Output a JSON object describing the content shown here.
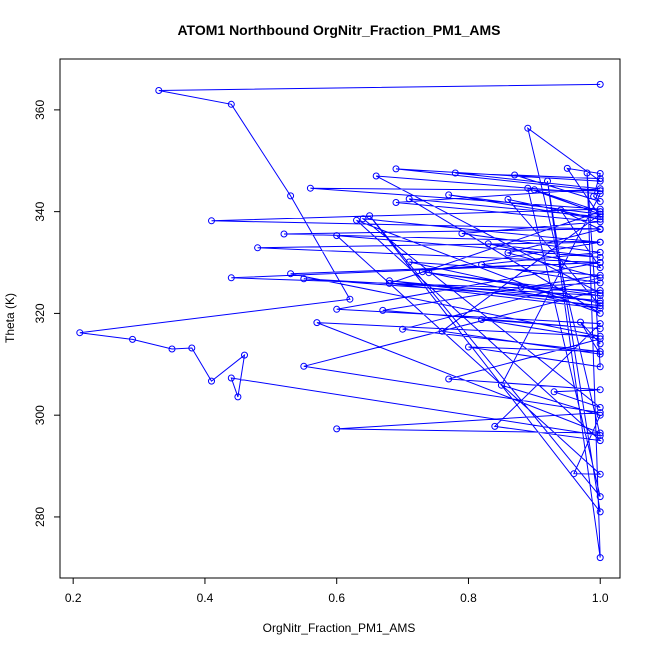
{
  "chart_data": {
    "type": "line",
    "title": "ATOM1 Northbound OrgNitr_Fraction_PM1_AMS",
    "xlabel": "OrgNitr_Fraction_PM1_AMS",
    "ylabel": "Theta (K)",
    "xlim": [
      0.18,
      1.03
    ],
    "ylim": [
      268,
      370
    ],
    "xticks": [
      0.2,
      0.4,
      0.6,
      0.8,
      1.0
    ],
    "xtick_labels": [
      "0.2",
      "0.4",
      "0.6",
      "0.8",
      "1.0"
    ],
    "yticks": [
      280,
      300,
      320,
      340,
      360
    ],
    "ytick_labels": [
      "280",
      "300",
      "320",
      "340",
      "360"
    ],
    "grid": false,
    "legend": "none",
    "colors": {
      "series": "#0000ff",
      "axes": "#000000",
      "background": "#ffffff"
    },
    "series": [
      {
        "markers": "open-circle",
        "x": [
          1.0,
          0.33,
          0.44,
          0.53,
          0.62,
          0.21,
          0.29,
          0.35,
          0.38,
          0.41,
          0.46,
          0.45,
          0.44,
          1.0,
          0.89,
          1.0,
          0.69,
          1.0,
          0.56,
          1.0,
          0.41,
          1.0,
          0.52,
          1.0,
          0.48,
          1.0,
          0.44,
          1.0,
          0.55,
          1.0,
          0.6,
          1.0,
          0.57,
          1.0,
          0.53,
          1.0,
          0.6,
          1.0,
          0.84,
          1.0,
          0.63,
          1.0,
          0.71,
          1.0,
          0.95,
          1.0,
          0.99,
          1.0,
          0.87,
          1.0,
          0.78,
          1.0,
          0.69,
          1.0,
          0.79,
          1.0,
          0.82,
          1.0,
          0.88,
          1.0,
          0.71,
          1.0,
          0.67,
          1.0,
          0.82,
          1.0,
          0.77,
          1.0,
          0.93,
          1.0,
          0.64,
          1.0,
          0.73,
          1.0,
          0.55,
          1.0,
          0.68,
          1.0,
          0.86,
          1.0,
          0.77,
          1.0,
          0.9,
          1.0,
          0.68,
          1.0,
          0.74,
          1.0,
          0.66,
          1.0,
          0.85,
          1.0,
          0.96,
          1.0,
          0.6,
          1.0,
          0.83,
          1.0,
          0.94,
          1.0,
          0.86,
          1.0,
          0.7,
          1.0,
          0.8,
          1.0,
          0.98,
          1.0,
          0.92,
          1.0,
          0.65,
          1.0,
          0.89,
          1.0,
          0.76,
          1.0,
          0.97,
          1.0
        ],
        "y": [
          365.0,
          363.8,
          361.1,
          343.1,
          322.8,
          316.2,
          314.9,
          313.0,
          313.2,
          306.7,
          311.8,
          303.6,
          307.3,
          296.0,
          356.4,
          346.0,
          348.4,
          344.1,
          344.6,
          340.5,
          338.2,
          336.6,
          335.6,
          334.0,
          332.9,
          330.0,
          327.0,
          324.5,
          309.6,
          300.5,
          297.3,
          296.5,
          318.2,
          315.5,
          327.8,
          330.0,
          320.8,
          318.0,
          297.8,
          295.0,
          338.3,
          320.0,
          342.5,
          339.0,
          348.5,
          347.5,
          343.0,
          342.0,
          347.2,
          346.5,
          347.6,
          344.5,
          341.8,
          338.0,
          335.7,
          332.0,
          329.6,
          326.0,
          325.2,
          322.0,
          330.1,
          327.5,
          320.6,
          317.0,
          318.8,
          315.0,
          307.1,
          305.0,
          304.6,
          301.5,
          338.6,
          334.0,
          328.2,
          323.5,
          326.8,
          322.5,
          326.4,
          321.5,
          342.4,
          338.5,
          343.3,
          339.5,
          344.3,
          340.0,
          325.9,
          321.0,
          328.0,
          324.0,
          347.0,
          343.5,
          305.9,
          300.0,
          288.5,
          288.4,
          335.3,
          331.0,
          333.7,
          329.0,
          340.3,
          336.5,
          331.9,
          327.0,
          316.9,
          312.5,
          313.4,
          309.5,
          347.6,
          272.0,
          346.0,
          281.0,
          339.2,
          284.0,
          344.6,
          339.5,
          316.5,
          312.0,
          318.3,
          314.0
        ]
      }
    ]
  }
}
